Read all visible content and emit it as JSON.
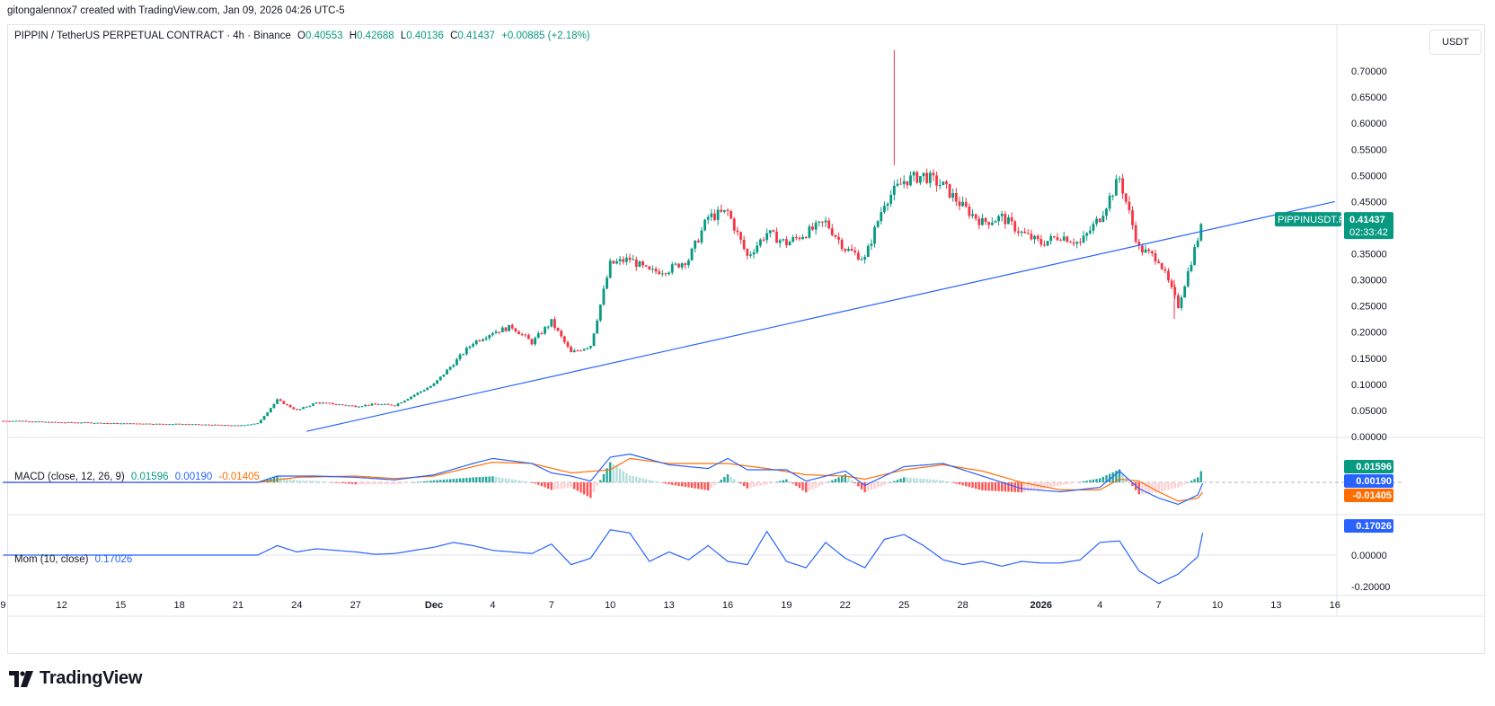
{
  "header": {
    "attribution": "gitongalennox7 created with TradingView.com, Jan 09, 2026 04:26 UTC-5"
  },
  "legend": {
    "symbol": "PIPPIN / TetherUS PERPETUAL CONTRACT · 4h · Binance",
    "o_label": "O",
    "o": "0.40553",
    "h_label": "H",
    "h": "0.42688",
    "l_label": "L",
    "l": "0.40136",
    "c_label": "C",
    "c": "0.41437",
    "change": "+0.00885 (+2.18%)"
  },
  "currency": "USDT",
  "price_tag": {
    "symbol": "PIPPINUSDT.P",
    "price": "0.41437",
    "countdown": "02:33:42"
  },
  "macd_legend": {
    "name": "MACD (close, 12, 26, 9)",
    "v1": "0.01596",
    "v2": "0.00190",
    "v3": "-0.01405"
  },
  "mom_legend": {
    "name": "Mom (10, close)",
    "v1": "0.17026"
  },
  "colors": {
    "up": "#089981",
    "down": "#f23645",
    "macd": "#2962ff",
    "signal": "#ff6d00",
    "trendline": "#2962ff",
    "mom": "#2962ff"
  },
  "footer": {
    "brand": "TradingView"
  },
  "chart_data": [
    {
      "type": "candlestick",
      "title": "PIPPIN / TetherUS PERPETUAL CONTRACT · 4h · Binance",
      "ylim": [
        0.0,
        0.75
      ],
      "y_ticks": [
        "0.70000",
        "0.65000",
        "0.60000",
        "0.55000",
        "0.50000",
        "0.45000",
        "0.40000",
        "0.35000",
        "0.30000",
        "0.25000",
        "0.20000",
        "0.15000",
        "0.10000",
        "0.05000",
        "0.00000"
      ],
      "x_ticks": [
        "9",
        "12",
        "15",
        "18",
        "21",
        "24",
        "27",
        "Dec",
        "4",
        "7",
        "10",
        "13",
        "16",
        "19",
        "22",
        "25",
        "28",
        "2026",
        "4",
        "7",
        "10",
        "13",
        "16"
      ],
      "x_tick_days": [
        -22,
        -19,
        -16,
        -13,
        -10,
        -7,
        -4,
        0,
        3,
        6,
        9,
        12,
        15,
        18,
        21,
        24,
        27,
        31,
        34,
        37,
        40,
        43,
        46
      ],
      "approx_daily_close": [
        [
          -22,
          0.03
        ],
        [
          -21,
          0.03
        ],
        [
          -20,
          0.028
        ],
        [
          -19,
          0.027
        ],
        [
          -18,
          0.027
        ],
        [
          -17,
          0.026
        ],
        [
          -16,
          0.025
        ],
        [
          -15,
          0.025
        ],
        [
          -14,
          0.024
        ],
        [
          -13,
          0.024
        ],
        [
          -12,
          0.023
        ],
        [
          -11,
          0.022
        ],
        [
          -10,
          0.021
        ],
        [
          -9,
          0.025
        ],
        [
          -8,
          0.07
        ],
        [
          -7,
          0.05
        ],
        [
          -6,
          0.065
        ],
        [
          -5,
          0.062
        ],
        [
          -4,
          0.058
        ],
        [
          -3,
          0.062
        ],
        [
          -2,
          0.06
        ],
        [
          -1,
          0.08
        ],
        [
          0,
          0.1
        ],
        [
          1,
          0.14
        ],
        [
          2,
          0.18
        ],
        [
          3,
          0.2
        ],
        [
          4,
          0.21
        ],
        [
          5,
          0.18
        ],
        [
          6,
          0.22
        ],
        [
          7,
          0.16
        ],
        [
          8,
          0.175
        ],
        [
          9,
          0.33
        ],
        [
          10,
          0.34
        ],
        [
          11,
          0.315
        ],
        [
          12,
          0.32
        ],
        [
          13,
          0.34
        ],
        [
          14,
          0.42
        ],
        [
          15,
          0.43
        ],
        [
          16,
          0.345
        ],
        [
          17,
          0.39
        ],
        [
          18,
          0.37
        ],
        [
          19,
          0.39
        ],
        [
          20,
          0.41
        ],
        [
          21,
          0.36
        ],
        [
          22,
          0.34
        ],
        [
          23,
          0.45
        ],
        [
          24,
          0.49
        ],
        [
          25,
          0.5
        ],
        [
          26,
          0.48
        ],
        [
          27,
          0.44
        ],
        [
          28,
          0.41
        ],
        [
          29,
          0.42
        ],
        [
          30,
          0.39
        ],
        [
          31,
          0.37
        ],
        [
          32,
          0.385
        ],
        [
          33,
          0.37
        ],
        [
          34,
          0.42
        ],
        [
          35,
          0.495
        ],
        [
          36,
          0.36
        ],
        [
          37,
          0.34
        ],
        [
          38,
          0.25
        ],
        [
          39,
          0.38
        ],
        [
          39.3,
          0.414
        ]
      ],
      "notable": {
        "spike_high": 0.74,
        "spike_day": 23.5,
        "low_after": 0.225
      },
      "trendline": {
        "from": [
          -6.5,
          0.01
        ],
        "to": [
          46.0,
          0.45
        ]
      },
      "last_price": 0.41437
    },
    {
      "type": "line",
      "title": "MACD (close, 12, 26, 9)",
      "ylim": [
        -0.05,
        0.07
      ],
      "series": [
        {
          "name": "MACD",
          "values": [
            [
              -22,
              0.0
            ],
            [
              -9,
              0.0
            ],
            [
              -8,
              0.01
            ],
            [
              -6,
              0.01
            ],
            [
              -4,
              0.008
            ],
            [
              -2,
              0.004
            ],
            [
              0,
              0.012
            ],
            [
              2,
              0.03
            ],
            [
              3,
              0.038
            ],
            [
              5,
              0.03
            ],
            [
              6,
              0.015
            ],
            [
              7,
              0.01
            ],
            [
              8,
              0.002
            ],
            [
              9,
              0.04
            ],
            [
              10,
              0.045
            ],
            [
              12,
              0.028
            ],
            [
              14,
              0.022
            ],
            [
              15,
              0.038
            ],
            [
              16,
              0.02
            ],
            [
              18,
              0.02
            ],
            [
              19,
              0.002
            ],
            [
              21,
              0.018
            ],
            [
              22,
              -0.005
            ],
            [
              24,
              0.025
            ],
            [
              26,
              0.03
            ],
            [
              28,
              0.01
            ],
            [
              30,
              -0.01
            ],
            [
              32,
              -0.015
            ],
            [
              34,
              -0.008
            ],
            [
              35,
              0.018
            ],
            [
              36,
              -0.01
            ],
            [
              37,
              -0.025
            ],
            [
              38,
              -0.035
            ],
            [
              39,
              -0.02
            ],
            [
              39.3,
              0.002
            ]
          ]
        },
        {
          "name": "Signal",
          "values": [
            [
              -22,
              0.0
            ],
            [
              -9,
              0.0
            ],
            [
              -7,
              0.008
            ],
            [
              -4,
              0.01
            ],
            [
              -2,
              0.006
            ],
            [
              0,
              0.01
            ],
            [
              2,
              0.025
            ],
            [
              3,
              0.032
            ],
            [
              5,
              0.03
            ],
            [
              7,
              0.015
            ],
            [
              9,
              0.02
            ],
            [
              10,
              0.038
            ],
            [
              12,
              0.03
            ],
            [
              15,
              0.03
            ],
            [
              17,
              0.022
            ],
            [
              19,
              0.012
            ],
            [
              21,
              0.01
            ],
            [
              22,
              0.005
            ],
            [
              24,
              0.02
            ],
            [
              26,
              0.028
            ],
            [
              28,
              0.018
            ],
            [
              30,
              0.0
            ],
            [
              32,
              -0.012
            ],
            [
              34,
              -0.012
            ],
            [
              35,
              0.005
            ],
            [
              36,
              0.002
            ],
            [
              37,
              -0.015
            ],
            [
              38,
              -0.03
            ],
            [
              39,
              -0.025
            ],
            [
              39.3,
              -0.014
            ]
          ]
        }
      ],
      "last_values": [
        0.01596,
        0.0019,
        -0.01405
      ]
    },
    {
      "type": "line",
      "title": "Mom (10, close)",
      "ylim": [
        -0.25,
        0.25
      ],
      "y_ticks": [
        "0.00000",
        "-0.20000"
      ],
      "series": [
        {
          "name": "Mom",
          "values": [
            [
              -22,
              0.0
            ],
            [
              -9,
              0.0
            ],
            [
              -8,
              0.06
            ],
            [
              -7,
              0.02
            ],
            [
              -6,
              0.04
            ],
            [
              -5,
              0.03
            ],
            [
              -4,
              0.02
            ],
            [
              -3,
              0.005
            ],
            [
              -2,
              0.01
            ],
            [
              -1,
              0.03
            ],
            [
              0,
              0.05
            ],
            [
              1,
              0.08
            ],
            [
              2,
              0.06
            ],
            [
              3,
              0.03
            ],
            [
              4,
              0.02
            ],
            [
              5,
              0.01
            ],
            [
              6,
              0.07
            ],
            [
              7,
              -0.06
            ],
            [
              8,
              -0.02
            ],
            [
              9,
              0.16
            ],
            [
              10,
              0.14
            ],
            [
              11,
              -0.04
            ],
            [
              12,
              0.02
            ],
            [
              13,
              -0.03
            ],
            [
              14,
              0.06
            ],
            [
              15,
              -0.04
            ],
            [
              16,
              -0.06
            ],
            [
              17,
              0.15
            ],
            [
              18,
              -0.04
            ],
            [
              19,
              -0.08
            ],
            [
              20,
              0.08
            ],
            [
              21,
              -0.02
            ],
            [
              22,
              -0.08
            ],
            [
              23,
              0.1
            ],
            [
              24,
              0.13
            ],
            [
              25,
              0.06
            ],
            [
              26,
              -0.03
            ],
            [
              27,
              -0.06
            ],
            [
              28,
              -0.04
            ],
            [
              29,
              -0.07
            ],
            [
              30,
              -0.04
            ],
            [
              31,
              -0.05
            ],
            [
              32,
              -0.05
            ],
            [
              33,
              -0.03
            ],
            [
              34,
              0.08
            ],
            [
              35,
              0.09
            ],
            [
              36,
              -0.1
            ],
            [
              37,
              -0.18
            ],
            [
              38,
              -0.12
            ],
            [
              39,
              -0.01
            ],
            [
              39.3,
              0.17
            ]
          ]
        }
      ],
      "last_value": 0.17026
    }
  ]
}
